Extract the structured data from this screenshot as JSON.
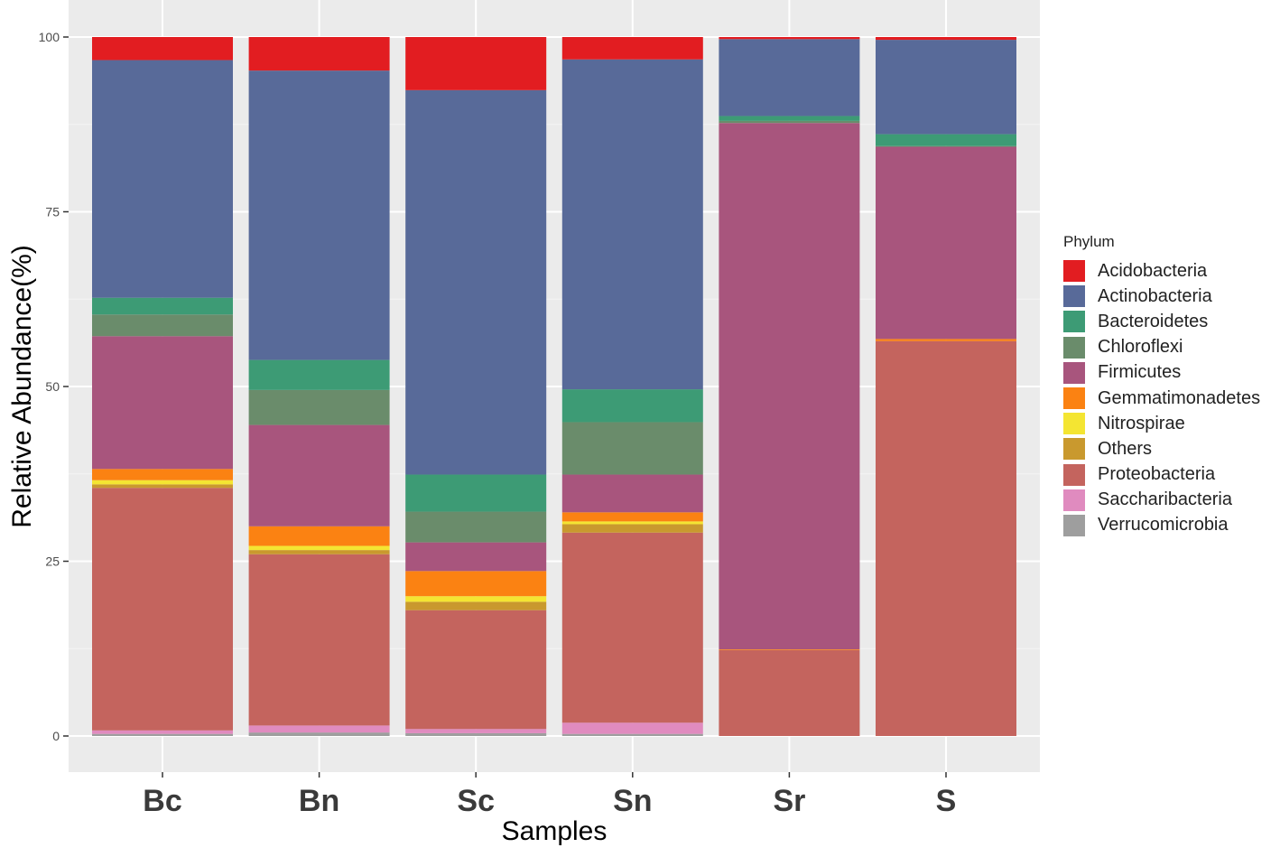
{
  "chart_data": {
    "type": "bar",
    "stacked": true,
    "title": "",
    "xlabel": "Samples",
    "ylabel": "Relative Abundance(%)",
    "ylim": [
      0,
      100
    ],
    "yticks": [
      0,
      25,
      50,
      75,
      100
    ],
    "ytick_labels": [
      "0",
      "25",
      "50",
      "75",
      "100"
    ],
    "grid": true,
    "legend_position": "right",
    "legend_title": "Phylum",
    "categories": [
      "Bc",
      "Bn",
      "Sc",
      "Sn",
      "Sr",
      "S"
    ],
    "series": [
      {
        "name": "Verrucomicrobia",
        "color": "#9e9e9e",
        "values": [
          0.3,
          0.5,
          0.4,
          0.3,
          0.0,
          0.0
        ]
      },
      {
        "name": "Saccharibacteria",
        "color": "#e08bbf",
        "values": [
          0.5,
          1.0,
          0.6,
          1.6,
          0.0,
          0.0
        ]
      },
      {
        "name": "Proteobacteria",
        "color": "#c4645e",
        "values": [
          34.7,
          24.5,
          17.0,
          27.2,
          12.3,
          56.5
        ]
      },
      {
        "name": "Others",
        "color": "#c9992e",
        "values": [
          0.5,
          0.6,
          1.2,
          1.2,
          0.0,
          0.0
        ]
      },
      {
        "name": "Nitrospirae",
        "color": "#f4e532",
        "values": [
          0.6,
          0.6,
          0.8,
          0.4,
          0.0,
          0.0
        ]
      },
      {
        "name": "Gemmatimonadetes",
        "color": "#fb8212",
        "values": [
          1.6,
          2.8,
          3.6,
          1.3,
          0.1,
          0.3
        ]
      },
      {
        "name": "Firmicutes",
        "color": "#a8557d",
        "values": [
          19.0,
          14.5,
          4.1,
          5.4,
          75.3,
          27.5
        ]
      },
      {
        "name": "Chloroflexi",
        "color": "#6a8c6b",
        "values": [
          3.1,
          5.0,
          4.4,
          7.5,
          0.3,
          0.1
        ]
      },
      {
        "name": "Bacteroidetes",
        "color": "#3d9b75",
        "values": [
          2.4,
          4.3,
          5.3,
          4.7,
          0.7,
          1.7
        ]
      },
      {
        "name": "Actinobacteria",
        "color": "#586a99",
        "values": [
          34.0,
          41.4,
          55.0,
          47.2,
          11.0,
          13.5
        ]
      },
      {
        "name": "Acidobacteria",
        "color": "#e21d21",
        "values": [
          3.3,
          4.8,
          7.6,
          3.2,
          0.3,
          0.4
        ]
      }
    ],
    "legend_order": [
      "Acidobacteria",
      "Actinobacteria",
      "Bacteroidetes",
      "Chloroflexi",
      "Firmicutes",
      "Gemmatimonadetes",
      "Nitrospirae",
      "Others",
      "Proteobacteria",
      "Saccharibacteria",
      "Verrucomicrobia"
    ]
  }
}
